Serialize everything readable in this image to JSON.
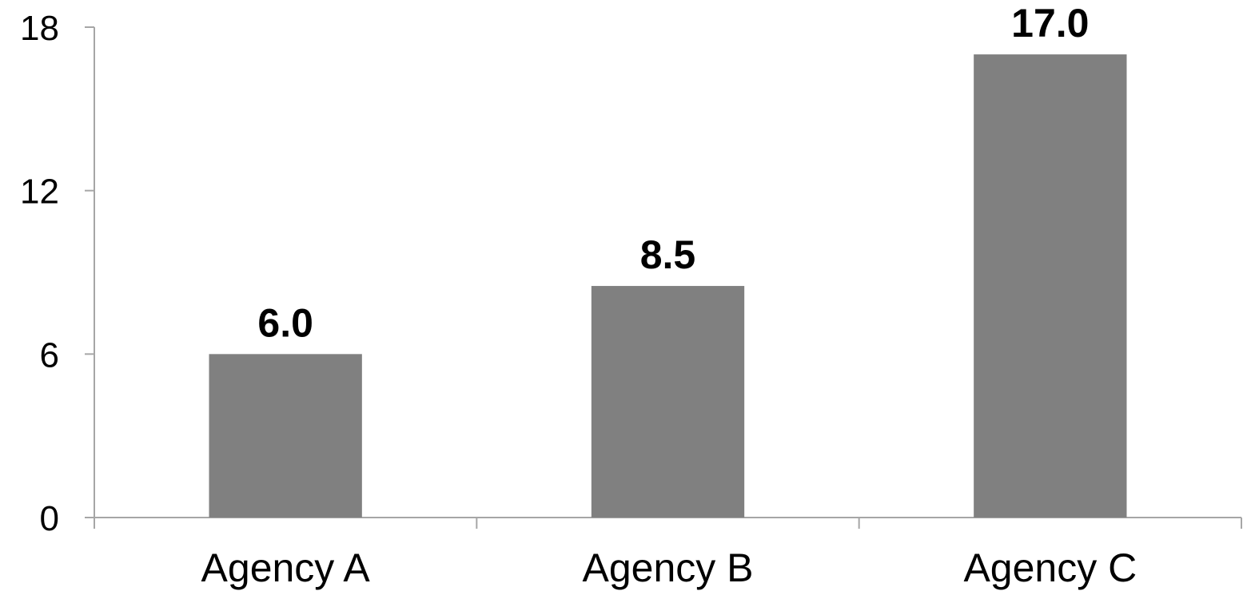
{
  "chart_data": {
    "type": "bar",
    "title": "",
    "xlabel": "",
    "ylabel": "",
    "categories": [
      "Agency A",
      "Agency B",
      "Agency C"
    ],
    "values": [
      6.0,
      8.5,
      17.0
    ],
    "data_labels": [
      "6.0",
      "8.5",
      "17.0"
    ],
    "ylim": [
      0,
      18
    ],
    "yticks": [
      0,
      6,
      12,
      18
    ],
    "ytick_labels": [
      "0",
      "6",
      "12",
      "18"
    ],
    "grid": false,
    "legend": "none",
    "colors": {
      "bar": "#808080",
      "axis": "#a6a6a6",
      "text": "#000000"
    }
  }
}
